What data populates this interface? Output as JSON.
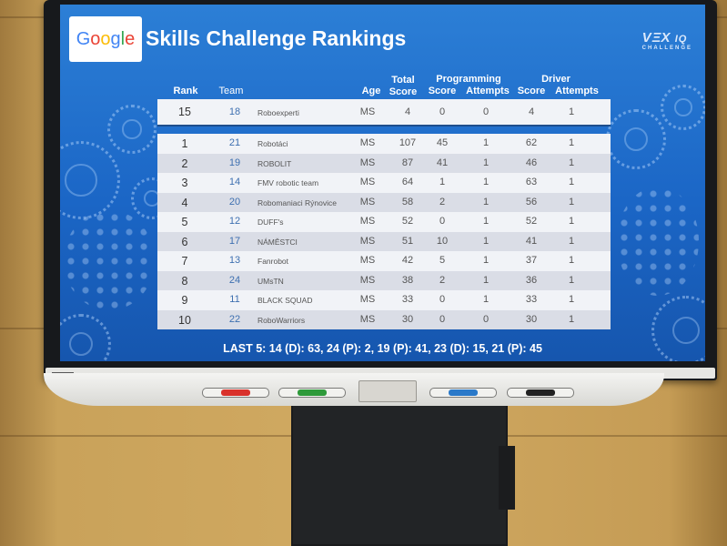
{
  "header": {
    "logo_text": "Google",
    "title": "Skills Challenge Rankings",
    "event_logo_main": "VEX IQ",
    "event_logo_sub": "CHALLENGE"
  },
  "columns": {
    "rank": "Rank",
    "team": "Team",
    "age": "Age",
    "total": [
      "Total",
      "Score"
    ],
    "programming": "Programming",
    "driver": "Driver",
    "score": "Score",
    "attempts": "Attempts"
  },
  "highlight_row": {
    "rank": "15",
    "team": "18",
    "name": "Roboexperti",
    "age": "MS",
    "total": "4",
    "prog_score": "0",
    "prog_attempts": "0",
    "drv_score": "4",
    "drv_attempts": "1"
  },
  "rows": [
    {
      "rank": "1",
      "team": "21",
      "name": "Robotáci",
      "age": "MS",
      "total": "107",
      "prog_score": "45",
      "prog_attempts": "1",
      "drv_score": "62",
      "drv_attempts": "1"
    },
    {
      "rank": "2",
      "team": "19",
      "name": "ROBOLIT",
      "age": "MS",
      "total": "87",
      "prog_score": "41",
      "prog_attempts": "1",
      "drv_score": "46",
      "drv_attempts": "1"
    },
    {
      "rank": "3",
      "team": "14",
      "name": "FMV robotic team",
      "age": "MS",
      "total": "64",
      "prog_score": "1",
      "prog_attempts": "1",
      "drv_score": "63",
      "drv_attempts": "1"
    },
    {
      "rank": "4",
      "team": "20",
      "name": "Robomaniaci Rýnovice",
      "age": "MS",
      "total": "58",
      "prog_score": "2",
      "prog_attempts": "1",
      "drv_score": "56",
      "drv_attempts": "1"
    },
    {
      "rank": "5",
      "team": "12",
      "name": "DUFF's",
      "age": "MS",
      "total": "52",
      "prog_score": "0",
      "prog_attempts": "1",
      "drv_score": "52",
      "drv_attempts": "1"
    },
    {
      "rank": "6",
      "team": "17",
      "name": "NÁMĚSTCI",
      "age": "MS",
      "total": "51",
      "prog_score": "10",
      "prog_attempts": "1",
      "drv_score": "41",
      "drv_attempts": "1"
    },
    {
      "rank": "7",
      "team": "13",
      "name": "Fanrobot",
      "age": "MS",
      "total": "42",
      "prog_score": "5",
      "prog_attempts": "1",
      "drv_score": "37",
      "drv_attempts": "1"
    },
    {
      "rank": "8",
      "team": "24",
      "name": "UMsTN",
      "age": "MS",
      "total": "38",
      "prog_score": "2",
      "prog_attempts": "1",
      "drv_score": "36",
      "drv_attempts": "1"
    },
    {
      "rank": "9",
      "team": "11",
      "name": "BLACK SQUAD",
      "age": "MS",
      "total": "33",
      "prog_score": "0",
      "prog_attempts": "1",
      "drv_score": "33",
      "drv_attempts": "1"
    },
    {
      "rank": "10",
      "team": "22",
      "name": "RoboWarriors",
      "age": "MS",
      "total": "30",
      "prog_score": "0",
      "prog_attempts": "0",
      "drv_score": "30",
      "drv_attempts": "1"
    }
  ],
  "footer": "LAST 5: 14 (D): 63, 24 (P): 2, 19 (P): 41, 23 (D): 15, 21 (P): 45",
  "pen_colors": [
    "#d9322b",
    "#2e9a3a",
    "#2a79c9",
    "#222222"
  ]
}
